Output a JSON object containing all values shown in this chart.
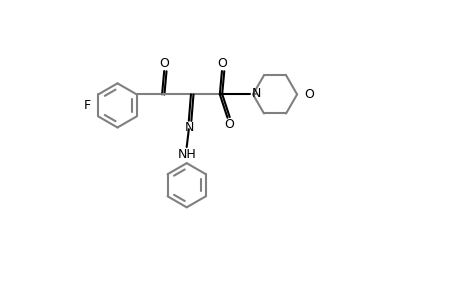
{
  "bg_color": "#ffffff",
  "line_color": "#000000",
  "ring_color": "#808080",
  "lw": 1.5,
  "fs": 9,
  "xlim": [
    0,
    10
  ],
  "ylim": [
    0,
    7
  ],
  "ring_r": 0.52,
  "fig_w": 4.6,
  "fig_h": 3.0,
  "dpi": 100
}
